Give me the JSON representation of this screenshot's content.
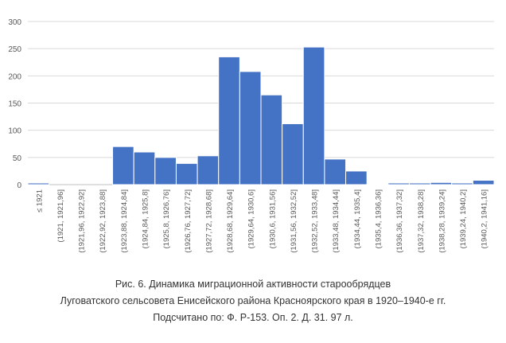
{
  "chart_data": {
    "type": "bar",
    "title": "",
    "xlabel": "",
    "ylabel": "",
    "ylim": [
      0,
      300
    ],
    "yticks": [
      0,
      50,
      100,
      150,
      200,
      250,
      300
    ],
    "grid": true,
    "bar_color": "#4472c4",
    "categories": [
      "≤ 1921",
      "(1921, 1921,96]",
      "(1921,96, 1922,92]",
      "(1922,92, 1923,88]",
      "(1923,88, 1924,84]",
      "(1924,84, 1925,8]",
      "(1925,8, 1926,76]",
      "(1926,76, 1927,72]",
      "(1927,72, 1928,68]",
      "(1928,68, 1929,64]",
      "(1929,64, 1930,6]",
      "(1930,6, 1931,56]",
      "(1931,56, 1932,52]",
      "(1932,52, 1933,48]",
      "(1933,48, 1934,44]",
      "(1934,44, 1935,4]",
      "(1935,4, 1936,36]",
      "(1936,36, 1937,32]",
      "(1937,32, 1938,28]",
      "(1938,28, 1939,24]",
      "(1939,24, 1940,2]",
      "(1940,2, 1941,16]"
    ],
    "values": [
      3,
      0,
      0,
      0,
      70,
      60,
      50,
      39,
      53,
      235,
      208,
      165,
      112,
      253,
      47,
      25,
      1,
      3,
      3,
      4,
      3,
      8
    ]
  },
  "caption": {
    "line1": "Рис. 6. Динамика миграционной активности старообрядцев",
    "line2": "Луговатского сельсовета Енисейского района Красноярского края в 1920–1940-е гг.",
    "line3": "Подсчитано по: Ф. Р-153. Оп. 2. Д. 31. 97 л."
  }
}
